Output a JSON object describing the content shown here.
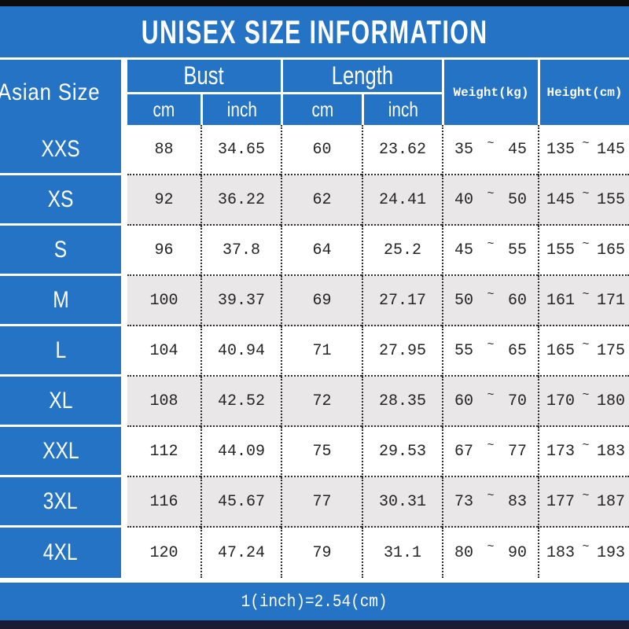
{
  "title": "UNISEX SIZE INFORMATION",
  "footer": "1(inch)=2.54(cm)",
  "colors": {
    "accent_blue": "#2473c4",
    "row_alt_gray": "#e9e7e7",
    "top_bar": "#0c0c0c",
    "bottom_bar": "#1b1b33"
  },
  "table": {
    "corner_header": "Asian Size",
    "group_headers": [
      {
        "label": "Bust",
        "sub": [
          "cm",
          "inch"
        ]
      },
      {
        "label": "Length",
        "sub": [
          "cm",
          "inch"
        ]
      }
    ],
    "weight_header": "Weight(kg)",
    "height_header": "Height(cm)",
    "range_separator": "~",
    "rows": [
      {
        "size": "XXS",
        "bust_cm": "88",
        "bust_inch": "34.65",
        "length_cm": "60",
        "length_inch": "23.62",
        "weight_min": "35",
        "weight_max": "45",
        "height_min": "135",
        "height_max": "145"
      },
      {
        "size": "XS",
        "bust_cm": "92",
        "bust_inch": "36.22",
        "length_cm": "62",
        "length_inch": "24.41",
        "weight_min": "40",
        "weight_max": "50",
        "height_min": "145",
        "height_max": "155"
      },
      {
        "size": "S",
        "bust_cm": "96",
        "bust_inch": "37.8",
        "length_cm": "64",
        "length_inch": "25.2",
        "weight_min": "45",
        "weight_max": "55",
        "height_min": "155",
        "height_max": "165"
      },
      {
        "size": "M",
        "bust_cm": "100",
        "bust_inch": "39.37",
        "length_cm": "69",
        "length_inch": "27.17",
        "weight_min": "50",
        "weight_max": "60",
        "height_min": "161",
        "height_max": "171"
      },
      {
        "size": "L",
        "bust_cm": "104",
        "bust_inch": "40.94",
        "length_cm": "71",
        "length_inch": "27.95",
        "weight_min": "55",
        "weight_max": "65",
        "height_min": "165",
        "height_max": "175"
      },
      {
        "size": "XL",
        "bust_cm": "108",
        "bust_inch": "42.52",
        "length_cm": "72",
        "length_inch": "28.35",
        "weight_min": "60",
        "weight_max": "70",
        "height_min": "170",
        "height_max": "180"
      },
      {
        "size": "XXL",
        "bust_cm": "112",
        "bust_inch": "44.09",
        "length_cm": "75",
        "length_inch": "29.53",
        "weight_min": "67",
        "weight_max": "77",
        "height_min": "173",
        "height_max": "183"
      },
      {
        "size": "3XL",
        "bust_cm": "116",
        "bust_inch": "45.67",
        "length_cm": "77",
        "length_inch": "30.31",
        "weight_min": "73",
        "weight_max": "83",
        "height_min": "177",
        "height_max": "187"
      },
      {
        "size": "4XL",
        "bust_cm": "120",
        "bust_inch": "47.24",
        "length_cm": "79",
        "length_inch": "31.1",
        "weight_min": "80",
        "weight_max": "90",
        "height_min": "183",
        "height_max": "193"
      }
    ]
  },
  "chart_data": {
    "type": "table",
    "title": "UNISEX SIZE INFORMATION",
    "columns": [
      "Asian Size",
      "Bust cm",
      "Bust inch",
      "Length cm",
      "Length inch",
      "Weight(kg)",
      "Height(cm)"
    ],
    "rows": [
      [
        "XXS",
        88,
        34.65,
        60,
        23.62,
        "35~45",
        "135~145"
      ],
      [
        "XS",
        92,
        36.22,
        62,
        24.41,
        "40~50",
        "145~155"
      ],
      [
        "S",
        96,
        37.8,
        64,
        25.2,
        "45~55",
        "155~165"
      ],
      [
        "M",
        100,
        39.37,
        69,
        27.17,
        "50~60",
        "161~171"
      ],
      [
        "L",
        104,
        40.94,
        71,
        27.95,
        "55~65",
        "165~175"
      ],
      [
        "XL",
        108,
        42.52,
        72,
        28.35,
        "60~70",
        "170~180"
      ],
      [
        "XXL",
        112,
        44.09,
        75,
        29.53,
        "67~77",
        "173~183"
      ],
      [
        "3XL",
        116,
        45.67,
        77,
        30.31,
        "73~83",
        "177~187"
      ],
      [
        "4XL",
        120,
        47.24,
        79,
        31.1,
        "80~90",
        "183~193"
      ]
    ],
    "note": "1(inch)=2.54(cm)"
  }
}
